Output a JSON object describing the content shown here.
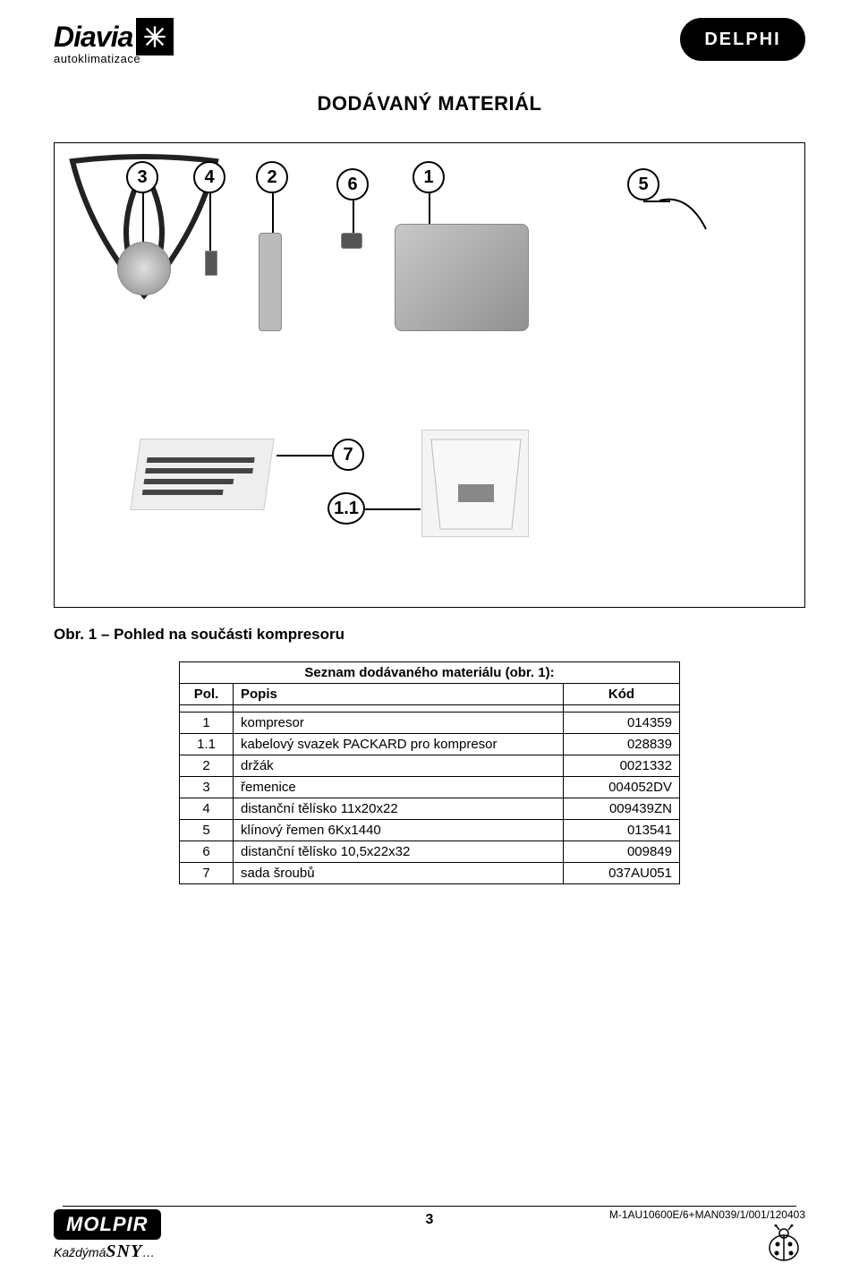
{
  "header": {
    "brand_left": "Diavia",
    "brand_left_sub": "autoklimatizace",
    "brand_right": "DELPHI"
  },
  "title": "DODÁVANÝ MATERIÁL",
  "figure": {
    "callouts": [
      "1",
      "2",
      "3",
      "4",
      "5",
      "6",
      "7",
      "1.1"
    ]
  },
  "caption": "Obr. 1 – Pohled na součásti kompresoru",
  "table": {
    "title": "Seznam dodávaného materiálu (obr. 1):",
    "headers": {
      "pol": "Pol.",
      "popis": "Popis",
      "kod": "Kód"
    },
    "rows": [
      {
        "pol": "1",
        "popis": "kompresor",
        "kod": "014359"
      },
      {
        "pol": "1.1",
        "popis": "kabelový svazek PACKARD pro kompresor",
        "kod": "028839"
      },
      {
        "pol": "2",
        "popis": "držák",
        "kod": "0021332"
      },
      {
        "pol": "3",
        "popis": "řemenice",
        "kod": "004052DV"
      },
      {
        "pol": "4",
        "popis": "distanční tělísko 11x20x22",
        "kod": "009439ZN"
      },
      {
        "pol": "5",
        "popis": "klínový řemen 6Kx1440",
        "kod": "013541"
      },
      {
        "pol": "6",
        "popis": "distanční tělísko 10,5x22x32",
        "kod": "009849"
      },
      {
        "pol": "7",
        "popis": "sada šroubů",
        "kod": "037AU051"
      }
    ]
  },
  "footer": {
    "molpir": "MOLPIR",
    "slogan_prefix": "Každý",
    "slogan_mid": "má",
    "slogan_sny": "SNY",
    "slogan_suffix": "…",
    "page_number": "3",
    "doc_code": "M-1AU10600E/6+MAN039/1/001/120403"
  },
  "colors": {
    "text": "#000000",
    "bg": "#ffffff",
    "border": "#000000",
    "part_fill": "#c8c8c8"
  }
}
